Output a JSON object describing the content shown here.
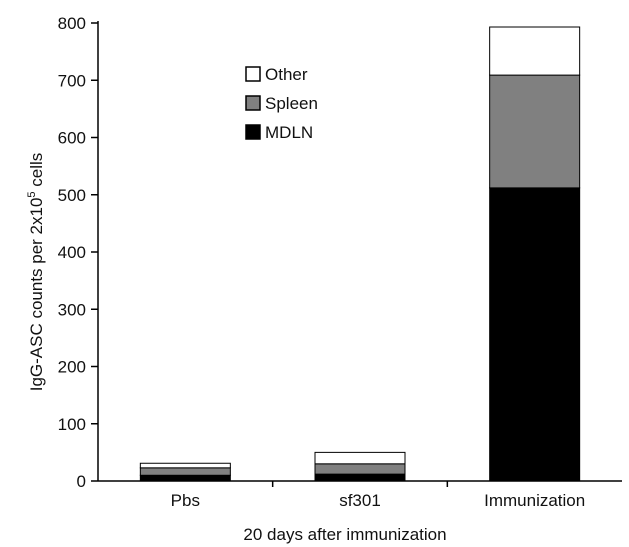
{
  "chart_data": {
    "type": "bar",
    "stacked": true,
    "categories": [
      "Pbs",
      "sf301",
      "Immunization"
    ],
    "series": [
      {
        "name": "MDLN",
        "values": [
          10,
          12,
          512
        ],
        "color": "#000000"
      },
      {
        "name": "Spleen",
        "values": [
          13,
          18,
          197
        ],
        "color": "#808080"
      },
      {
        "name": "Other",
        "values": [
          8,
          20,
          84
        ],
        "color": "#ffffff"
      }
    ],
    "xlabel": "20 days after immunization",
    "ylabel": "IgG-ASC counts per 2x10",
    "ylabel_sup": "5",
    "ylabel_suffix": " cells",
    "ylim": [
      0,
      800
    ],
    "yticks": [
      0,
      100,
      200,
      300,
      400,
      500,
      600,
      700,
      800
    ],
    "grid": false,
    "legend_placement": "upper-left-inside"
  }
}
